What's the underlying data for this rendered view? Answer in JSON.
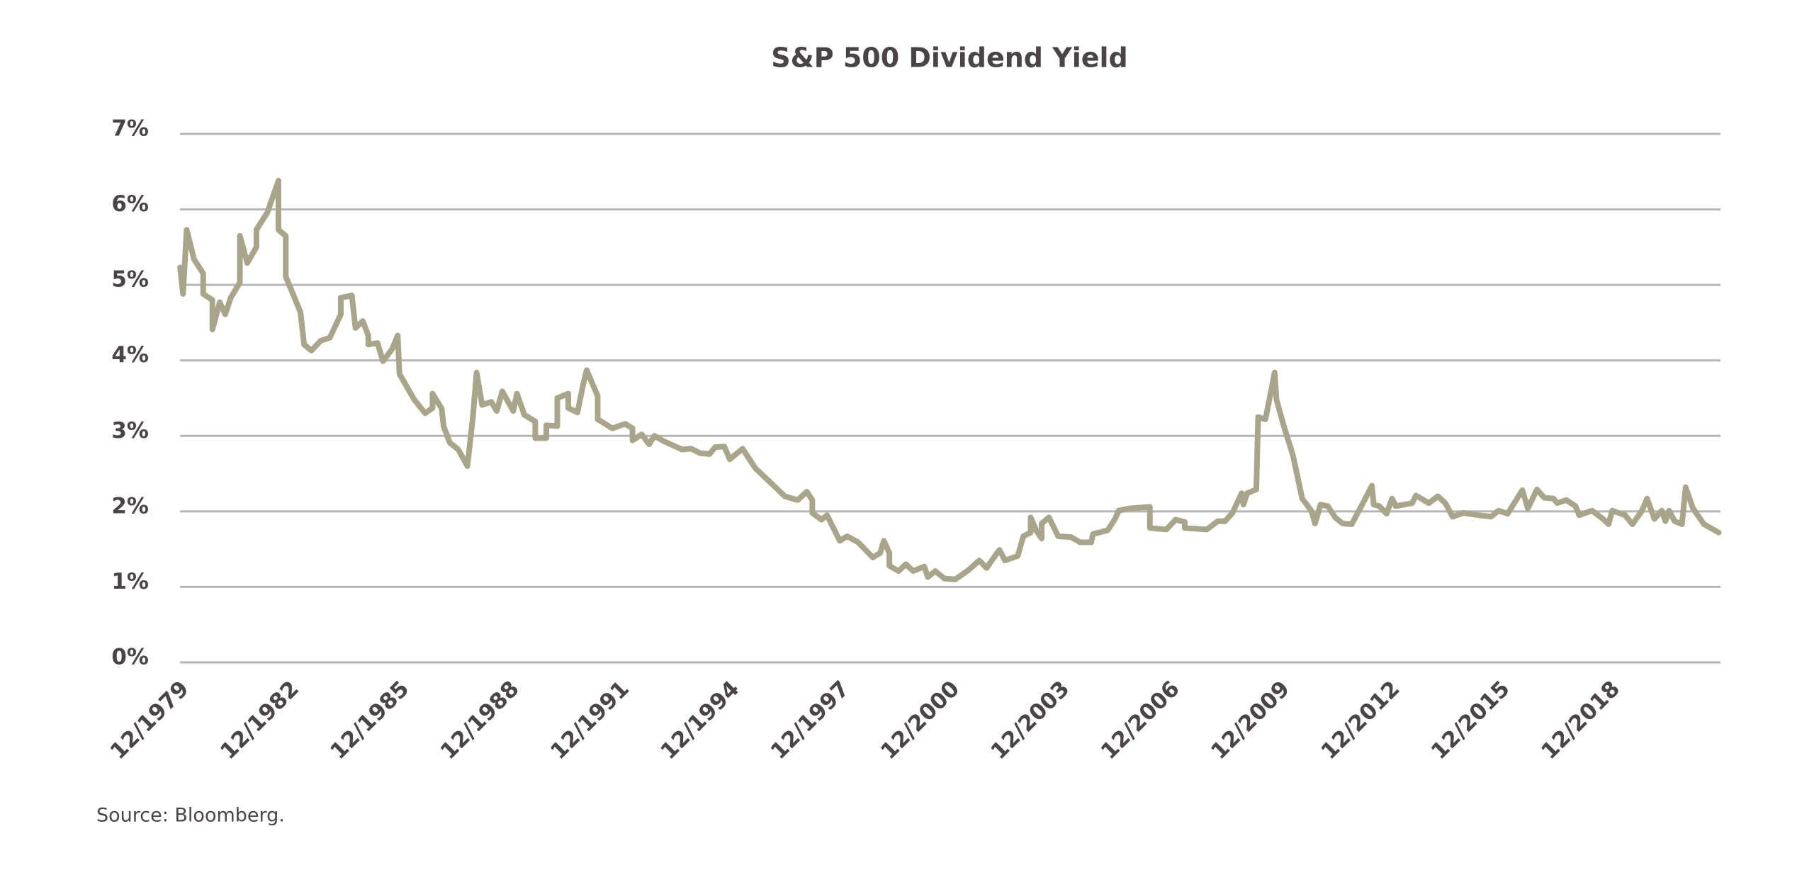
{
  "chart_data": {
    "type": "line",
    "title": "S&P 500 Dividend Yield",
    "source": "Source: Bloomberg.",
    "color": "#a9a58a",
    "grid": true,
    "xlim": [
      1979.917,
      2021.9
    ],
    "ylim": [
      0,
      7
    ],
    "xticks": [
      {
        "value": 1979.917,
        "label": "12/1979"
      },
      {
        "value": 1982.917,
        "label": "12/1982"
      },
      {
        "value": 1985.917,
        "label": "12/1985"
      },
      {
        "value": 1988.917,
        "label": "12/1988"
      },
      {
        "value": 1991.917,
        "label": "12/1991"
      },
      {
        "value": 1994.917,
        "label": "12/1994"
      },
      {
        "value": 1997.917,
        "label": "12/1997"
      },
      {
        "value": 2000.917,
        "label": "12/2000"
      },
      {
        "value": 2003.917,
        "label": "12/2003"
      },
      {
        "value": 2006.917,
        "label": "12/2006"
      },
      {
        "value": 2009.917,
        "label": "12/2009"
      },
      {
        "value": 2012.917,
        "label": "12/2012"
      },
      {
        "value": 2015.917,
        "label": "12/2015"
      },
      {
        "value": 2018.917,
        "label": "12/2018"
      }
    ],
    "yticks": [
      {
        "value": 0,
        "label": "0%"
      },
      {
        "value": 1,
        "label": "1%"
      },
      {
        "value": 2,
        "label": "2%"
      },
      {
        "value": 3,
        "label": "3%"
      },
      {
        "value": 4,
        "label": "4%"
      },
      {
        "value": 5,
        "label": "5%"
      },
      {
        "value": 6,
        "label": "6%"
      },
      {
        "value": 7,
        "label": "7%"
      }
    ],
    "x": [
      1979.92,
      1980.0,
      1980.1,
      1980.3,
      1980.55,
      1980.55,
      1980.8,
      1980.8,
      1981.0,
      1981.15,
      1981.3,
      1981.55,
      1981.55,
      1981.75,
      1982.0,
      1982.0,
      1982.3,
      1982.6,
      1982.6,
      1982.8,
      1982.8,
      1983.2,
      1983.3,
      1983.5,
      1983.75,
      1984.0,
      1984.3,
      1984.3,
      1984.6,
      1984.7,
      1984.9,
      1985.05,
      1985.05,
      1985.3,
      1985.45,
      1985.7,
      1985.85,
      1985.9,
      1986.3,
      1986.6,
      1986.8,
      1986.8,
      1987.05,
      1987.1,
      1987.27,
      1987.5,
      1987.75,
      1987.9,
      1988.0,
      1988.15,
      1988.4,
      1988.55,
      1988.7,
      1989.0,
      1989.1,
      1989.3,
      1989.6,
      1989.6,
      1989.9,
      1989.9,
      1990.2,
      1990.2,
      1990.5,
      1990.5,
      1990.75,
      1990.9,
      1991.0,
      1991.3,
      1991.3,
      1991.7,
      1992.05,
      1992.25,
      1992.25,
      1992.5,
      1992.7,
      1992.85,
      1993.1,
      1993.6,
      1993.85,
      1994.1,
      1994.35,
      1994.5,
      1994.75,
      1994.9,
      1995.25,
      1995.6,
      1995.95,
      1996.4,
      1996.75,
      1997.0,
      1997.15,
      1997.15,
      1997.4,
      1997.55,
      1997.9,
      1998.1,
      1998.4,
      1998.8,
      1999.0,
      1999.1,
      1999.25,
      1999.25,
      1999.5,
      1999.7,
      1999.9,
      2000.2,
      2000.3,
      2000.5,
      2000.75,
      2001.05,
      2001.4,
      2001.7,
      2001.9,
      2002.2,
      2002.25,
      2002.4,
      2002.75,
      2002.9,
      2003.1,
      2003.1,
      2003.25,
      2003.4,
      2003.4,
      2003.6,
      2003.85,
      2004.2,
      2004.45,
      2004.75,
      2004.8,
      2005.2,
      2005.4,
      2005.5,
      2005.8,
      2006.35,
      2006.35,
      2006.8,
      2007.05,
      2007.3,
      2007.3,
      2007.9,
      2008.2,
      2008.4,
      2008.6,
      2008.85,
      2008.9,
      2009.0,
      2009.25,
      2009.3,
      2009.5,
      2009.75,
      2009.8,
      2010.0,
      2010.25,
      2010.5,
      2010.75,
      2010.85,
      2011.0,
      2011.2,
      2011.4,
      2011.6,
      2011.85,
      2012.2,
      2012.4,
      2012.45,
      2012.6,
      2012.8,
      2012.95,
      2013.05,
      2013.5,
      2013.6,
      2013.95,
      2014.2,
      2014.4,
      2014.6,
      2014.9,
      2015.3,
      2015.65,
      2015.85,
      2016.1,
      2016.5,
      2016.65,
      2016.9,
      2017.1,
      2017.35,
      2017.45,
      2017.7,
      2017.95,
      2018.05,
      2018.4,
      2018.7,
      2018.85,
      2018.95,
      2019.3,
      2019.5,
      2019.75,
      2019.9,
      2020.1,
      2020.3,
      2020.4,
      2020.5,
      2020.65,
      2020.85,
      2020.95,
      2021.15,
      2021.45,
      2021.85
    ],
    "values": [
      5.23,
      4.88,
      5.73,
      5.34,
      5.15,
      4.88,
      4.8,
      4.41,
      4.77,
      4.61,
      4.83,
      5.03,
      5.65,
      5.29,
      5.5,
      5.73,
      5.96,
      6.38,
      5.73,
      5.65,
      5.11,
      4.64,
      4.21,
      4.13,
      4.26,
      4.3,
      4.61,
      4.83,
      4.86,
      4.43,
      4.52,
      4.33,
      4.21,
      4.23,
      3.99,
      4.15,
      4.33,
      3.82,
      3.48,
      3.3,
      3.37,
      3.56,
      3.36,
      3.13,
      2.91,
      2.82,
      2.6,
      3.25,
      3.84,
      3.41,
      3.45,
      3.33,
      3.59,
      3.33,
      3.56,
      3.28,
      3.19,
      2.97,
      2.97,
      3.14,
      3.13,
      3.5,
      3.56,
      3.37,
      3.31,
      3.67,
      3.87,
      3.53,
      3.22,
      3.1,
      3.16,
      3.1,
      2.94,
      3.02,
      2.89,
      3.0,
      2.93,
      2.82,
      2.83,
      2.77,
      2.76,
      2.85,
      2.86,
      2.69,
      2.83,
      2.57,
      2.41,
      2.2,
      2.15,
      2.26,
      2.15,
      1.98,
      1.89,
      1.95,
      1.61,
      1.67,
      1.59,
      1.39,
      1.45,
      1.61,
      1.45,
      1.28,
      1.21,
      1.3,
      1.21,
      1.27,
      1.13,
      1.21,
      1.11,
      1.1,
      1.22,
      1.35,
      1.25,
      1.46,
      1.49,
      1.35,
      1.41,
      1.67,
      1.72,
      1.92,
      1.75,
      1.64,
      1.84,
      1.92,
      1.67,
      1.66,
      1.59,
      1.59,
      1.7,
      1.75,
      1.9,
      2.01,
      2.04,
      2.06,
      1.78,
      1.76,
      1.89,
      1.86,
      1.78,
      1.76,
      1.87,
      1.87,
      1.98,
      2.24,
      2.09,
      2.24,
      2.29,
      3.25,
      3.22,
      3.84,
      3.48,
      3.13,
      2.74,
      2.17,
      2.01,
      1.84,
      2.09,
      2.07,
      1.92,
      1.84,
      1.83,
      2.15,
      2.34,
      2.09,
      2.07,
      1.97,
      2.17,
      2.07,
      2.11,
      2.21,
      2.11,
      2.2,
      2.11,
      1.93,
      1.98,
      1.95,
      1.93,
      2.01,
      1.97,
      2.28,
      2.04,
      2.29,
      2.18,
      2.17,
      2.11,
      2.15,
      2.07,
      1.95,
      2.01,
      1.9,
      1.83,
      2.01,
      1.95,
      1.83,
      2.0,
      2.17,
      1.9,
      2.01,
      1.87,
      2.01,
      1.87,
      1.83,
      2.32,
      2.04,
      1.83,
      1.72
    ]
  }
}
